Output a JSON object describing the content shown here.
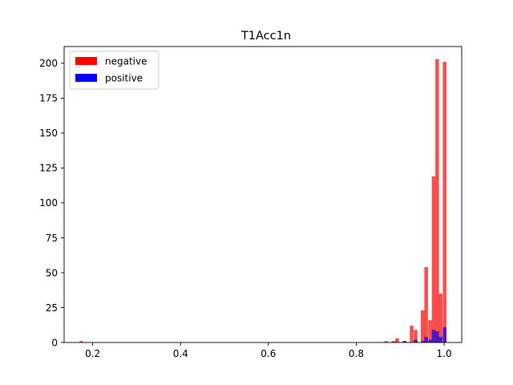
{
  "chart_data": {
    "type": "histogram",
    "title": "T1Acc1n",
    "xlabel": "",
    "ylabel": "",
    "xlim": [
      0.135,
      1.04
    ],
    "ylim": [
      0,
      212
    ],
    "xticks": [
      0.2,
      0.4,
      0.6,
      0.8,
      1.0
    ],
    "xtick_labels": [
      "0.2",
      "0.4",
      "0.6",
      "0.8",
      "1.0"
    ],
    "yticks": [
      0,
      25,
      50,
      75,
      100,
      125,
      150,
      175,
      200
    ],
    "ytick_labels": [
      "0",
      "25",
      "50",
      "75",
      "100",
      "125",
      "150",
      "175",
      "200"
    ],
    "bin_width": 0.00826,
    "legend": {
      "placement": "top-left"
    },
    "series": [
      {
        "name": "negative",
        "color": "#ff0000",
        "opacity": 0.7,
        "bins": [
          {
            "x": 0.17,
            "value": 1
          },
          {
            "x": 0.864,
            "value": 1
          },
          {
            "x": 0.881,
            "value": 1
          },
          {
            "x": 0.889,
            "value": 3
          },
          {
            "x": 0.906,
            "value": 1
          },
          {
            "x": 0.922,
            "value": 12
          },
          {
            "x": 0.931,
            "value": 9
          },
          {
            "x": 0.947,
            "value": 23
          },
          {
            "x": 0.955,
            "value": 54
          },
          {
            "x": 0.964,
            "value": 16
          },
          {
            "x": 0.972,
            "value": 119
          },
          {
            "x": 0.98,
            "value": 203
          },
          {
            "x": 0.988,
            "value": 35
          },
          {
            "x": 0.997,
            "value": 201
          }
        ]
      },
      {
        "name": "positive",
        "color": "#0000ff",
        "opacity": 0.7,
        "bins": [
          {
            "x": 0.906,
            "value": 1
          },
          {
            "x": 0.931,
            "value": 2
          },
          {
            "x": 0.947,
            "value": 1
          },
          {
            "x": 0.955,
            "value": 4
          },
          {
            "x": 0.964,
            "value": 2
          },
          {
            "x": 0.972,
            "value": 9
          },
          {
            "x": 0.98,
            "value": 8
          },
          {
            "x": 0.988,
            "value": 4
          },
          {
            "x": 0.997,
            "value": 11
          }
        ]
      }
    ]
  }
}
